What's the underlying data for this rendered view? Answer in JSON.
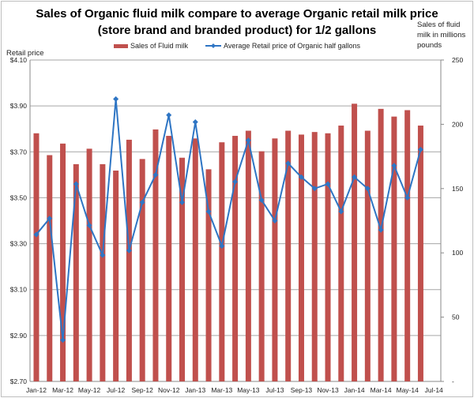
{
  "chart_data": {
    "type": "bar",
    "title_line1": "Sales of Organic fluid milk compare to average Organic retail milk price",
    "title_line2": "(store brand and branded product) for 1/2 gallons",
    "ylabel_left": "Retail price",
    "ylabel_right_lines": [
      "Sales of fluid",
      "milk in millions",
      "pounds"
    ],
    "categories": [
      "Jan-12",
      "Feb-12",
      "Mar-12",
      "Apr-12",
      "May-12",
      "Jun-12",
      "Jul-12",
      "Aug-12",
      "Sep-12",
      "Oct-12",
      "Nov-12",
      "Dec-12",
      "Jan-13",
      "Feb-13",
      "Mar-13",
      "Apr-13",
      "May-13",
      "Jun-13",
      "Jul-13",
      "Aug-13",
      "Sep-13",
      "Oct-13",
      "Nov-13",
      "Dec-13",
      "Jan-14",
      "Feb-14",
      "Mar-14",
      "Apr-14",
      "May-14",
      "Jun-14",
      "Jul-14"
    ],
    "x_tick_labels": [
      "Jan-12",
      "Mar-12",
      "May-12",
      "Jul-12",
      "Sep-12",
      "Nov-12",
      "Jan-13",
      "Mar-13",
      "May-13",
      "Jul-13",
      "Sep-13",
      "Nov-13",
      "Jan-14",
      "Mar-14",
      "May-14",
      "Jul-14"
    ],
    "left_axis": {
      "range": [
        2.7,
        4.1
      ],
      "ticks": [
        "$2.70",
        "$2.90",
        "$3.10",
        "$3.30",
        "$3.50",
        "$3.70",
        "$3.90",
        "$4.10"
      ]
    },
    "right_axis": {
      "range": [
        0,
        250
      ],
      "ticks": [
        "-",
        "50",
        "100",
        "150",
        "200",
        "250"
      ]
    },
    "grid": true,
    "legend_position": "top",
    "series": [
      {
        "name": "Sales of Fluid milk",
        "type": "bar",
        "axis": "right",
        "color": "#c0504d",
        "values": [
          193,
          176,
          185,
          169,
          181,
          169,
          164,
          188,
          173,
          196,
          191,
          174,
          189,
          165,
          186,
          191,
          195,
          179,
          189,
          195,
          192,
          194,
          193,
          199,
          216,
          195,
          212,
          206,
          211,
          199,
          null
        ]
      },
      {
        "name": "Average Retail price of Organic half gallons",
        "type": "line",
        "axis": "left",
        "color": "#2e75c4",
        "marker": "diamond",
        "values": [
          3.34,
          3.41,
          2.88,
          3.56,
          3.38,
          3.25,
          3.93,
          3.27,
          3.48,
          3.6,
          3.86,
          3.48,
          3.83,
          3.44,
          3.29,
          3.57,
          3.75,
          3.49,
          3.4,
          3.65,
          3.59,
          3.54,
          3.56,
          3.44,
          3.59,
          3.54,
          3.36,
          3.64,
          3.5,
          3.71,
          null
        ]
      }
    ]
  }
}
